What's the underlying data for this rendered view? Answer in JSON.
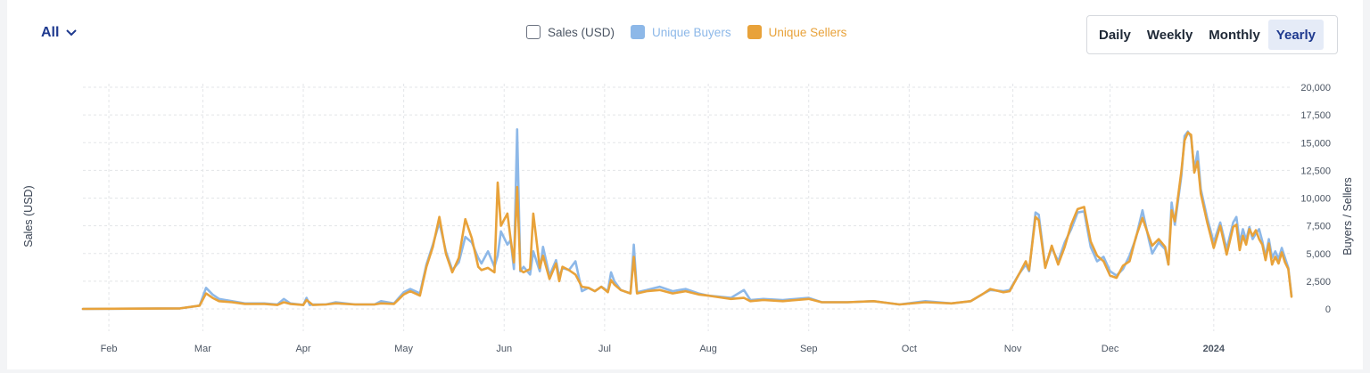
{
  "filter": {
    "label": "All"
  },
  "legend": {
    "items": [
      {
        "label": "Sales (USD)",
        "color": "#6b7280",
        "active": false
      },
      {
        "label": "Unique Buyers",
        "color": "#8db8e8",
        "active": true
      },
      {
        "label": "Unique Sellers",
        "color": "#e8a23a",
        "active": true
      }
    ]
  },
  "timeframe": {
    "options": [
      "Daily",
      "Weekly",
      "Monthly",
      "Yearly"
    ],
    "selected": "Yearly"
  },
  "chart_data": {
    "type": "line",
    "ylabel_left": "Sales (USD)",
    "ylabel_right": "Buyers / Sellers",
    "ylim": [
      0,
      20000
    ],
    "yticks": [
      "20,000",
      "17,500",
      "15,000",
      "12,500",
      "10,000",
      "7,500",
      "5,000",
      "2,500",
      "0"
    ],
    "xlim": [
      0,
      368
    ],
    "xticks": [
      {
        "label": "Feb",
        "day": 8
      },
      {
        "label": "Mar",
        "day": 37
      },
      {
        "label": "Apr",
        "day": 68
      },
      {
        "label": "May",
        "day": 99
      },
      {
        "label": "Jun",
        "day": 130
      },
      {
        "label": "Jul",
        "day": 161
      },
      {
        "label": "Aug",
        "day": 193
      },
      {
        "label": "Sep",
        "day": 224
      },
      {
        "label": "Oct",
        "day": 255
      },
      {
        "label": "Nov",
        "day": 287
      },
      {
        "label": "Dec",
        "day": 317
      },
      {
        "label": "2024",
        "day": 349
      }
    ],
    "series": [
      {
        "name": "Unique Buyers",
        "color": "#8db8e8",
        "points": [
          [
            0,
            0
          ],
          [
            30,
            50
          ],
          [
            36,
            300
          ],
          [
            38,
            1900
          ],
          [
            40,
            1300
          ],
          [
            42,
            900
          ],
          [
            46,
            700
          ],
          [
            50,
            500
          ],
          [
            56,
            500
          ],
          [
            60,
            400
          ],
          [
            62,
            900
          ],
          [
            64,
            500
          ],
          [
            70,
            350
          ],
          [
            75,
            400
          ],
          [
            68,
            350
          ],
          [
            69,
            1000
          ],
          [
            71,
            400
          ],
          [
            78,
            600
          ],
          [
            84,
            400
          ],
          [
            90,
            400
          ],
          [
            92,
            700
          ],
          [
            96,
            500
          ],
          [
            99,
            1500
          ],
          [
            101,
            1800
          ],
          [
            104,
            1400
          ],
          [
            106,
            4000
          ],
          [
            108,
            5800
          ],
          [
            110,
            7800
          ],
          [
            112,
            5200
          ],
          [
            114,
            3500
          ],
          [
            116,
            4200
          ],
          [
            118,
            6500
          ],
          [
            120,
            6000
          ],
          [
            122,
            4600
          ],
          [
            123,
            4100
          ],
          [
            125,
            5200
          ],
          [
            127,
            3800
          ],
          [
            128,
            4800
          ],
          [
            129,
            7000
          ],
          [
            131,
            5800
          ],
          [
            132,
            6200
          ],
          [
            133,
            3600
          ],
          [
            134,
            16200
          ],
          [
            135,
            3400
          ],
          [
            136,
            3800
          ],
          [
            138,
            3100
          ],
          [
            139,
            5200
          ],
          [
            141,
            3400
          ],
          [
            142,
            5600
          ],
          [
            144,
            3000
          ],
          [
            146,
            4400
          ],
          [
            147,
            2900
          ],
          [
            148,
            3700
          ],
          [
            150,
            3500
          ],
          [
            152,
            4300
          ],
          [
            154,
            1600
          ],
          [
            156,
            1900
          ],
          [
            158,
            1600
          ],
          [
            160,
            2000
          ],
          [
            162,
            1600
          ],
          [
            163,
            3300
          ],
          [
            164,
            2500
          ],
          [
            166,
            1700
          ],
          [
            169,
            1400
          ],
          [
            170,
            5800
          ],
          [
            171,
            1500
          ],
          [
            174,
            1700
          ],
          [
            178,
            2000
          ],
          [
            182,
            1600
          ],
          [
            186,
            1800
          ],
          [
            190,
            1400
          ],
          [
            193,
            1200
          ],
          [
            200,
            1000
          ],
          [
            204,
            1700
          ],
          [
            206,
            800
          ],
          [
            210,
            900
          ],
          [
            216,
            800
          ],
          [
            224,
            1000
          ],
          [
            228,
            600
          ],
          [
            236,
            600
          ],
          [
            244,
            700
          ],
          [
            252,
            400
          ],
          [
            260,
            700
          ],
          [
            268,
            500
          ],
          [
            274,
            700
          ],
          [
            278,
            1400
          ],
          [
            280,
            1700
          ],
          [
            284,
            1600
          ],
          [
            286,
            1700
          ],
          [
            289,
            3200
          ],
          [
            291,
            4000
          ],
          [
            292,
            3400
          ],
          [
            294,
            8700
          ],
          [
            295,
            8500
          ],
          [
            297,
            3800
          ],
          [
            299,
            5500
          ],
          [
            301,
            4300
          ],
          [
            303,
            6000
          ],
          [
            305,
            7200
          ],
          [
            307,
            8700
          ],
          [
            309,
            8800
          ],
          [
            311,
            5600
          ],
          [
            313,
            4300
          ],
          [
            315,
            4700
          ],
          [
            317,
            3400
          ],
          [
            319,
            3000
          ],
          [
            321,
            3600
          ],
          [
            323,
            4800
          ],
          [
            325,
            6400
          ],
          [
            327,
            8900
          ],
          [
            329,
            6200
          ],
          [
            330,
            5000
          ],
          [
            332,
            6000
          ],
          [
            334,
            5400
          ],
          [
            335,
            4000
          ],
          [
            336,
            9600
          ],
          [
            337,
            7600
          ],
          [
            339,
            12000
          ],
          [
            340,
            15600
          ],
          [
            341,
            16000
          ],
          [
            342,
            15500
          ],
          [
            343,
            12500
          ],
          [
            344,
            14200
          ],
          [
            345,
            10800
          ],
          [
            347,
            8200
          ],
          [
            349,
            6000
          ],
          [
            351,
            7800
          ],
          [
            353,
            5400
          ],
          [
            355,
            7800
          ],
          [
            356,
            8300
          ],
          [
            357,
            6000
          ],
          [
            358,
            7200
          ],
          [
            359,
            6200
          ],
          [
            360,
            7400
          ],
          [
            361,
            6300
          ],
          [
            362,
            6800
          ],
          [
            363,
            7200
          ],
          [
            364,
            6100
          ],
          [
            365,
            4700
          ],
          [
            366,
            6300
          ],
          [
            367,
            4600
          ],
          [
            368,
            5200
          ],
          [
            369,
            4500
          ],
          [
            370,
            5500
          ],
          [
            371,
            4600
          ],
          [
            372,
            3700
          ],
          [
            373,
            1200
          ]
        ]
      },
      {
        "name": "Unique Sellers",
        "color": "#e8a23a",
        "points": [
          [
            0,
            0
          ],
          [
            30,
            50
          ],
          [
            36,
            300
          ],
          [
            38,
            1400
          ],
          [
            40,
            1000
          ],
          [
            42,
            700
          ],
          [
            46,
            600
          ],
          [
            50,
            450
          ],
          [
            56,
            450
          ],
          [
            60,
            350
          ],
          [
            62,
            600
          ],
          [
            64,
            450
          ],
          [
            68,
            350
          ],
          [
            69,
            800
          ],
          [
            71,
            350
          ],
          [
            75,
            400
          ],
          [
            78,
            500
          ],
          [
            84,
            400
          ],
          [
            90,
            400
          ],
          [
            92,
            500
          ],
          [
            96,
            450
          ],
          [
            99,
            1300
          ],
          [
            101,
            1600
          ],
          [
            104,
            1200
          ],
          [
            106,
            3800
          ],
          [
            108,
            5600
          ],
          [
            110,
            8300
          ],
          [
            112,
            5000
          ],
          [
            114,
            3300
          ],
          [
            116,
            4600
          ],
          [
            118,
            8100
          ],
          [
            120,
            6400
          ],
          [
            122,
            3800
          ],
          [
            123,
            3500
          ],
          [
            125,
            3700
          ],
          [
            127,
            3300
          ],
          [
            128,
            11400
          ],
          [
            129,
            7500
          ],
          [
            131,
            8600
          ],
          [
            132,
            6300
          ],
          [
            133,
            4200
          ],
          [
            134,
            11000
          ],
          [
            135,
            3500
          ],
          [
            136,
            3300
          ],
          [
            138,
            3600
          ],
          [
            139,
            8600
          ],
          [
            141,
            3700
          ],
          [
            142,
            4800
          ],
          [
            144,
            2700
          ],
          [
            146,
            4100
          ],
          [
            147,
            2500
          ],
          [
            148,
            3800
          ],
          [
            150,
            3500
          ],
          [
            152,
            3100
          ],
          [
            154,
            2000
          ],
          [
            156,
            1900
          ],
          [
            158,
            1600
          ],
          [
            160,
            2000
          ],
          [
            162,
            1500
          ],
          [
            163,
            2600
          ],
          [
            164,
            2200
          ],
          [
            166,
            1700
          ],
          [
            169,
            1400
          ],
          [
            170,
            4700
          ],
          [
            171,
            1400
          ],
          [
            174,
            1600
          ],
          [
            178,
            1700
          ],
          [
            182,
            1400
          ],
          [
            186,
            1600
          ],
          [
            190,
            1300
          ],
          [
            193,
            1200
          ],
          [
            200,
            900
          ],
          [
            204,
            1000
          ],
          [
            206,
            700
          ],
          [
            210,
            800
          ],
          [
            216,
            700
          ],
          [
            224,
            900
          ],
          [
            228,
            600
          ],
          [
            236,
            600
          ],
          [
            244,
            700
          ],
          [
            252,
            400
          ],
          [
            260,
            600
          ],
          [
            268,
            500
          ],
          [
            274,
            700
          ],
          [
            278,
            1400
          ],
          [
            280,
            1800
          ],
          [
            284,
            1500
          ],
          [
            286,
            1600
          ],
          [
            289,
            3200
          ],
          [
            291,
            4300
          ],
          [
            292,
            3500
          ],
          [
            294,
            8300
          ],
          [
            295,
            8000
          ],
          [
            297,
            3700
          ],
          [
            299,
            5700
          ],
          [
            301,
            4000
          ],
          [
            303,
            5600
          ],
          [
            305,
            7600
          ],
          [
            307,
            9000
          ],
          [
            309,
            9200
          ],
          [
            311,
            6100
          ],
          [
            313,
            4800
          ],
          [
            315,
            4300
          ],
          [
            317,
            3000
          ],
          [
            319,
            2800
          ],
          [
            321,
            3900
          ],
          [
            323,
            4300
          ],
          [
            325,
            6500
          ],
          [
            327,
            8200
          ],
          [
            329,
            6500
          ],
          [
            330,
            5700
          ],
          [
            332,
            6300
          ],
          [
            334,
            5600
          ],
          [
            335,
            4000
          ],
          [
            336,
            8900
          ],
          [
            337,
            7900
          ],
          [
            339,
            12400
          ],
          [
            340,
            15200
          ],
          [
            341,
            15900
          ],
          [
            342,
            15700
          ],
          [
            343,
            12300
          ],
          [
            344,
            13300
          ],
          [
            345,
            10400
          ],
          [
            347,
            7800
          ],
          [
            349,
            5500
          ],
          [
            351,
            7500
          ],
          [
            353,
            4900
          ],
          [
            355,
            7400
          ],
          [
            356,
            7600
          ],
          [
            357,
            5300
          ],
          [
            358,
            6600
          ],
          [
            359,
            5800
          ],
          [
            360,
            7200
          ],
          [
            361,
            6600
          ],
          [
            362,
            7100
          ],
          [
            363,
            6300
          ],
          [
            364,
            5800
          ],
          [
            365,
            4400
          ],
          [
            366,
            5900
          ],
          [
            367,
            4000
          ],
          [
            368,
            4700
          ],
          [
            369,
            4100
          ],
          [
            370,
            5100
          ],
          [
            371,
            4200
          ],
          [
            372,
            3600
          ],
          [
            373,
            1100
          ]
        ]
      }
    ]
  }
}
